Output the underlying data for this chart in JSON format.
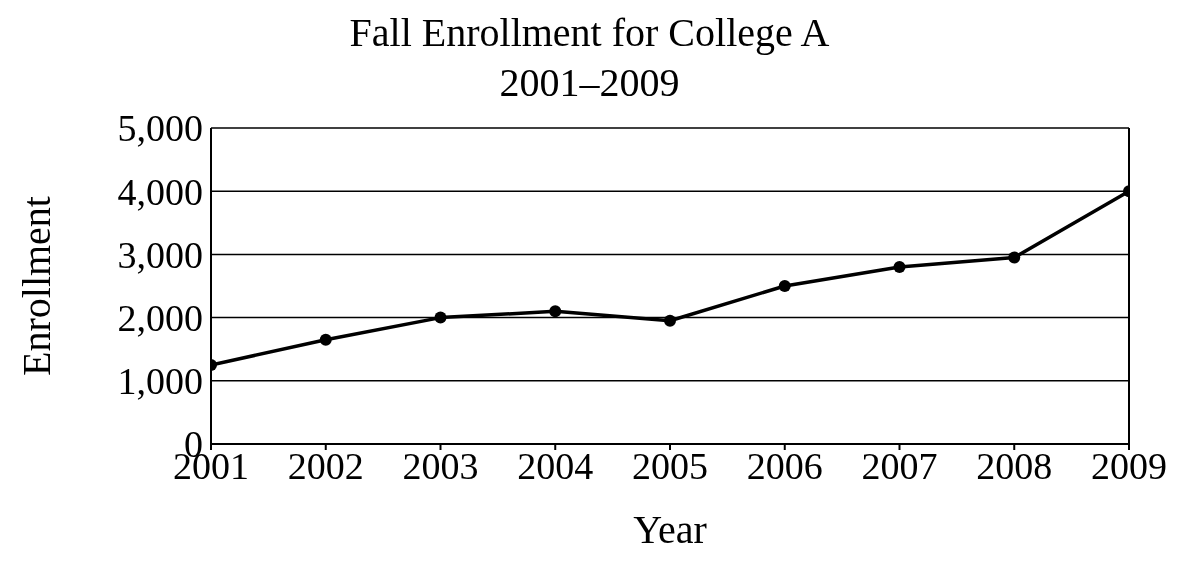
{
  "chart_data": {
    "type": "line",
    "title": "Fall Enrollment for College A",
    "subtitle": "2001–2009",
    "xlabel": "Year",
    "ylabel": "Enrollment",
    "x": [
      2001,
      2002,
      2003,
      2004,
      2005,
      2006,
      2007,
      2008,
      2009
    ],
    "series": [
      {
        "color": "#000000",
        "values": [
          1250,
          1650,
          2000,
          2100,
          1950,
          2500,
          2800,
          2950,
          4000
        ]
      }
    ],
    "xlim": [
      2001,
      2009
    ],
    "xticks": [
      2001,
      2002,
      2003,
      2004,
      2005,
      2006,
      2007,
      2008,
      2009
    ],
    "ylim": [
      0,
      5000
    ],
    "yticks": [
      {
        "value": 0,
        "label": "0"
      },
      {
        "value": 1000,
        "label": "1,000"
      },
      {
        "value": 2000,
        "label": "2,000"
      },
      {
        "value": 3000,
        "label": "3,000"
      },
      {
        "value": 4000,
        "label": "4,000"
      },
      {
        "value": 5000,
        "label": "5,000"
      }
    ],
    "grid": "y",
    "marker": "circle",
    "line_style": "solid",
    "legend": false
  }
}
